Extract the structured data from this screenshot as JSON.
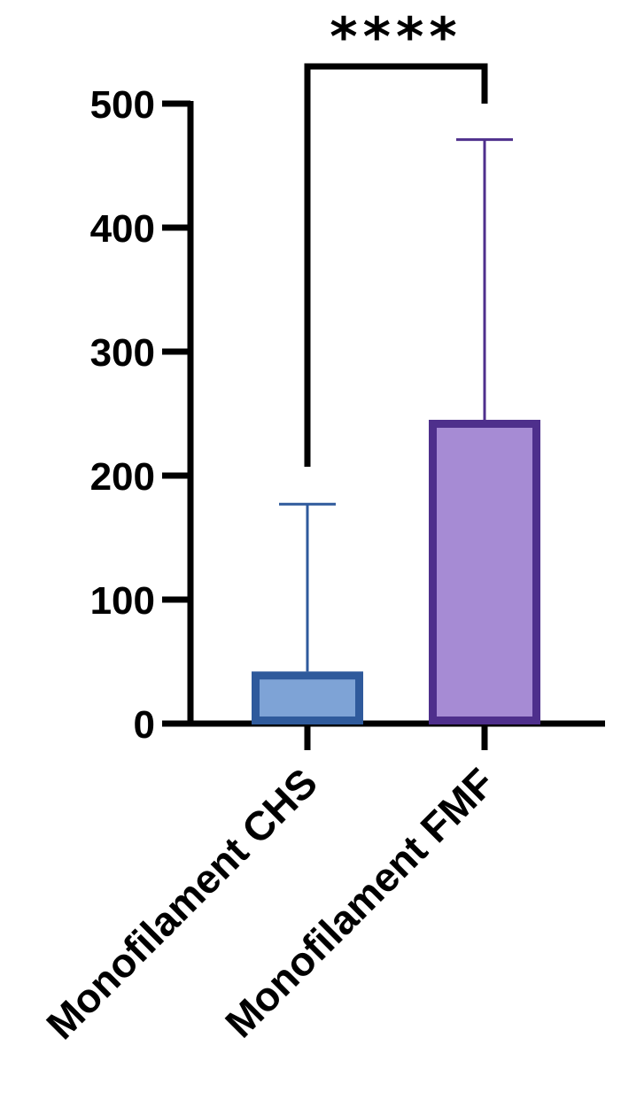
{
  "chart_data": {
    "type": "bar",
    "categories": [
      "Monofilament CHS",
      "Monofilament FMF"
    ],
    "values": [
      42,
      245
    ],
    "error_upper": [
      177,
      471
    ],
    "ylim": [
      0,
      500
    ],
    "yticks": [
      0,
      100,
      200,
      300,
      400,
      500
    ],
    "ytick_labels": [
      "0",
      "100",
      "200",
      "300",
      "400",
      "500"
    ],
    "bar_fill_colors": [
      "#7ea3d6",
      "#a68bd4"
    ],
    "bar_edge_colors": [
      "#2f5a9c",
      "#4e2f8c"
    ],
    "significance": {
      "label": "****",
      "between": [
        0,
        1
      ]
    },
    "grid": false,
    "legend": "none",
    "title": "",
    "xlabel": "",
    "ylabel": ""
  }
}
